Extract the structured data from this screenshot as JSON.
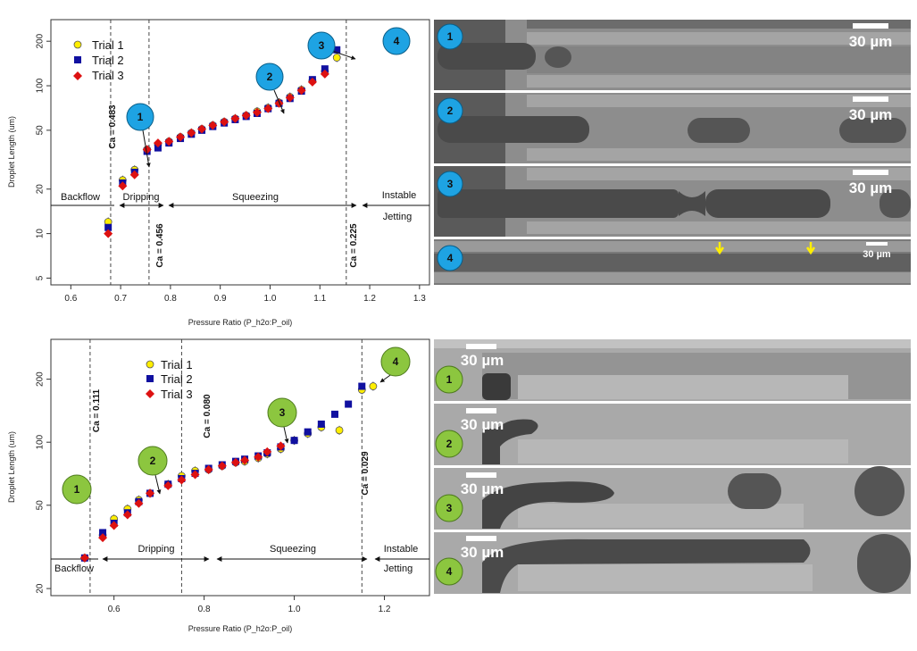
{
  "chart_data": [
    {
      "type": "scatter",
      "xlabel": "Pressure Ratio (P_h2o:P_oil)",
      "ylabel": "Droplet Length (um)",
      "y_scale": "log",
      "xlim": [
        0.56,
        1.32
      ],
      "ylim": [
        4.5,
        280
      ],
      "x_ticks": [
        "0.6",
        "0.7",
        "0.8",
        "0.9",
        "1.0",
        "1.1",
        "1.2",
        "1.3"
      ],
      "y_ticks": [
        "5",
        "10",
        "20",
        "50",
        "100",
        "200"
      ],
      "legend_position": "top-left",
      "series": [
        {
          "name": "Trial 1",
          "color": "#ffee00",
          "marker": "circle",
          "x": [
            0.675,
            0.704,
            0.728,
            0.753,
            0.775,
            0.797,
            0.82,
            0.842,
            0.863,
            0.885,
            0.908,
            0.93,
            0.952,
            0.974,
            0.996,
            1.018,
            1.04,
            1.063,
            1.085,
            1.11,
            1.134
          ],
          "y": [
            12,
            23,
            27,
            37,
            40,
            42,
            45,
            48,
            51,
            54,
            57,
            60,
            63,
            67,
            71,
            77,
            84,
            94,
            108,
            125,
            155
          ]
        },
        {
          "name": "Trial 2",
          "color": "#1010a0",
          "marker": "square",
          "x": [
            0.675,
            0.704,
            0.728,
            0.753,
            0.775,
            0.797,
            0.82,
            0.842,
            0.863,
            0.885,
            0.908,
            0.93,
            0.952,
            0.974,
            0.996,
            1.018,
            1.04,
            1.063,
            1.085,
            1.11,
            1.134
          ],
          "y": [
            11,
            22,
            26,
            36,
            38,
            41,
            44,
            47,
            50,
            53,
            56,
            59,
            62,
            65,
            70,
            76,
            82,
            92,
            110,
            130,
            175
          ]
        },
        {
          "name": "Trial 3",
          "color": "#dd1111",
          "marker": "diamond",
          "x": [
            0.675,
            0.704,
            0.728,
            0.753,
            0.775,
            0.797,
            0.82,
            0.842,
            0.863,
            0.885,
            0.908,
            0.93,
            0.952,
            0.974,
            0.996,
            1.018,
            1.04,
            1.063,
            1.085,
            1.11
          ],
          "y": [
            10,
            21,
            25,
            37,
            41,
            42,
            45,
            48,
            51,
            54,
            57,
            60,
            63,
            66,
            70,
            76,
            83,
            93,
            106,
            120
          ]
        }
      ],
      "vlines": [
        {
          "x": 0.68,
          "label": "Ca = 0.483"
        },
        {
          "x": 0.757,
          "label": "Ca = 0.456"
        },
        {
          "x": 1.153,
          "label": "Ca = 0.225"
        }
      ],
      "regions": [
        {
          "label": "Backflow",
          "x_from": 0.56,
          "x_to": 0.68
        },
        {
          "label": "Dripping",
          "x_from": 0.68,
          "x_to": 0.757
        },
        {
          "label": "Squeezing",
          "x_from": 0.757,
          "x_to": 1.153
        },
        {
          "label": "Instable",
          "label2": "Jetting",
          "x_from": 1.153,
          "x_to": 1.32
        }
      ],
      "callouts": [
        "1",
        "2",
        "3",
        "4"
      ]
    },
    {
      "type": "scatter",
      "xlabel": "Pressure Ratio (P_h2o:P_oil)",
      "ylabel": "Droplet Length (um)",
      "y_scale": "log",
      "xlim": [
        0.46,
        1.3
      ],
      "ylim": [
        18.5,
        310
      ],
      "x_ticks": [
        "0.6",
        "0.8",
        "1.0",
        "1.2"
      ],
      "y_ticks": [
        "20",
        "50",
        "100",
        "200"
      ],
      "legend_position": "top-center",
      "series": [
        {
          "name": "Trial 1",
          "color": "#ffee00",
          "marker": "circle",
          "x": [
            0.535,
            0.575,
            0.6,
            0.63,
            0.655,
            0.68,
            0.72,
            0.75,
            0.78,
            0.81,
            0.84,
            0.87,
            0.89,
            0.92,
            0.94,
            0.97,
            1.0,
            1.03,
            1.06,
            1.1,
            1.15,
            1.175
          ],
          "y": [
            28,
            36,
            43,
            48,
            53,
            57,
            63,
            69,
            73,
            74,
            77,
            80,
            81,
            84,
            88,
            93,
            102,
            110,
            118,
            114,
            178,
            185
          ]
        },
        {
          "name": "Trial 2",
          "color": "#1010a0",
          "marker": "square",
          "x": [
            0.535,
            0.575,
            0.6,
            0.63,
            0.655,
            0.68,
            0.72,
            0.75,
            0.78,
            0.81,
            0.84,
            0.87,
            0.89,
            0.92,
            0.94,
            0.97,
            1.0,
            1.03,
            1.06,
            1.09,
            1.12,
            1.15
          ],
          "y": [
            28,
            37,
            41,
            46,
            52,
            57,
            63,
            67,
            71,
            75,
            78,
            81,
            83,
            86,
            89,
            95,
            102,
            112,
            122,
            136,
            152,
            185
          ]
        },
        {
          "name": "Trial 3",
          "color": "#dd1111",
          "marker": "diamond",
          "x": [
            0.535,
            0.575,
            0.6,
            0.63,
            0.655,
            0.68,
            0.72,
            0.75,
            0.78,
            0.81,
            0.84,
            0.87,
            0.89,
            0.92,
            0.94,
            0.97
          ],
          "y": [
            28,
            35,
            40,
            45,
            51,
            57,
            62,
            66,
            70,
            74,
            77,
            80,
            82,
            85,
            90,
            96
          ]
        }
      ],
      "vlines": [
        {
          "x": 0.547,
          "label": "Ca = 0.111"
        },
        {
          "x": 0.75,
          "label": "Ca = 0.080"
        },
        {
          "x": 1.15,
          "label": "Ca = 0.029"
        }
      ],
      "regions": [
        {
          "label": "Backflow",
          "x_from": 0.46,
          "x_to": 0.547
        },
        {
          "label": "Dripping",
          "x_from": 0.547,
          "x_to": 0.75
        },
        {
          "label": "Squeezing",
          "x_from": 0.75,
          "x_to": 1.15
        },
        {
          "label": "Instable",
          "label2": "Jetting",
          "x_from": 1.15,
          "x_to": 1.3
        }
      ],
      "callouts": [
        "1",
        "2",
        "3",
        "4"
      ]
    }
  ],
  "micrographs": {
    "top": {
      "callout_color": "#1ea3e3",
      "scale_label": "30 µm",
      "panels": [
        "1",
        "2",
        "3",
        "4"
      ]
    },
    "bottom": {
      "callout_color": "#8cc63f",
      "scale_label": "30 µm",
      "panels": [
        "1",
        "2",
        "3",
        "4"
      ]
    }
  }
}
